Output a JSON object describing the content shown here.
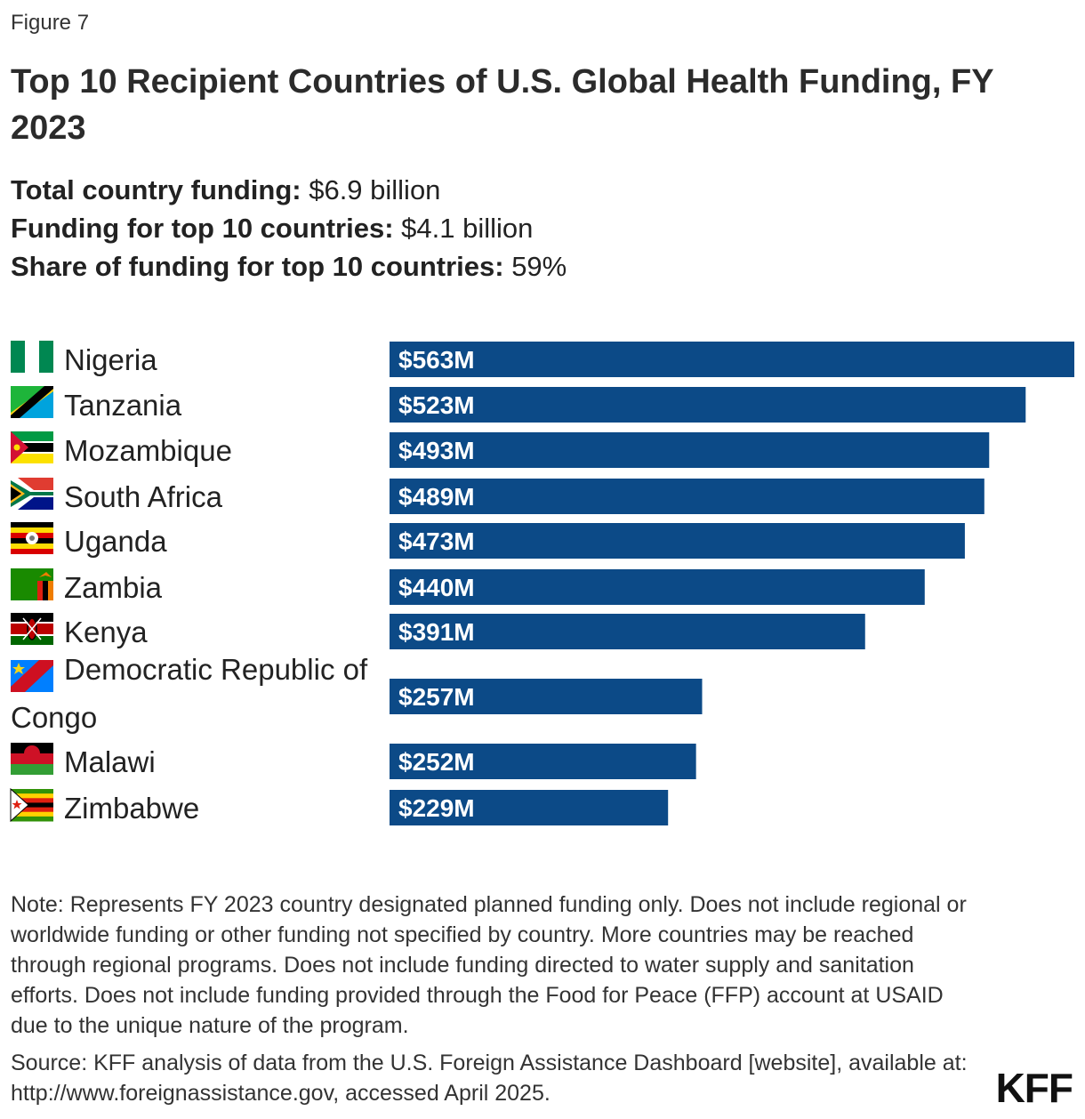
{
  "figure_label": "Figure 7",
  "title": "Top 10 Recipient Countries of U.S. Global Health Funding, FY 2023",
  "summary": [
    {
      "label": "Total country funding:",
      "value": " $6.9 billion"
    },
    {
      "label": "Funding for top 10 countries:",
      "value": " $4.1 billion"
    },
    {
      "label": "Share of funding for top 10 countries:",
      "value": " 59%"
    }
  ],
  "chart_data": {
    "type": "bar",
    "orientation": "horizontal",
    "title": "Top 10 Recipient Countries of U.S. Global Health Funding, FY 2023",
    "unit": "million USD",
    "categories": [
      "Nigeria",
      "Tanzania",
      "Mozambique",
      "South Africa",
      "Uganda",
      "Zambia",
      "Kenya",
      "Democratic Republic of Congo",
      "Malawi",
      "Zimbabwe"
    ],
    "values": [
      563,
      523,
      493,
      489,
      473,
      440,
      391,
      257,
      252,
      229
    ],
    "value_labels": [
      "$563M",
      "$523M",
      "$493M",
      "$489M",
      "$473M",
      "$440M",
      "$391M",
      "$257M",
      "$252M",
      "$229M"
    ],
    "flag_icons": [
      "nigeria-flag-icon",
      "tanzania-flag-icon",
      "mozambique-flag-icon",
      "south-africa-flag-icon",
      "uganda-flag-icon",
      "zambia-flag-icon",
      "kenya-flag-icon",
      "drc-flag-icon",
      "malawi-flag-icon",
      "zimbabwe-flag-icon"
    ],
    "bar_color": "#0c4a87",
    "xlim": [
      0,
      563
    ]
  },
  "note": "Note: Represents FY 2023 country designated planned funding only. Does not include regional or worldwide funding or other funding not specified by country. More countries may be reached through regional programs. Does not include funding directed to water supply and sanitation efforts. Does not include funding provided through the Food for Peace (FFP) account at USAID due to the unique nature of the program.",
  "source": "Source: KFF analysis of data from the U.S. Foreign Assistance Dashboard [website], available at: http://www.foreignassistance.gov, accessed April 2025.",
  "logo_text": "KFF"
}
